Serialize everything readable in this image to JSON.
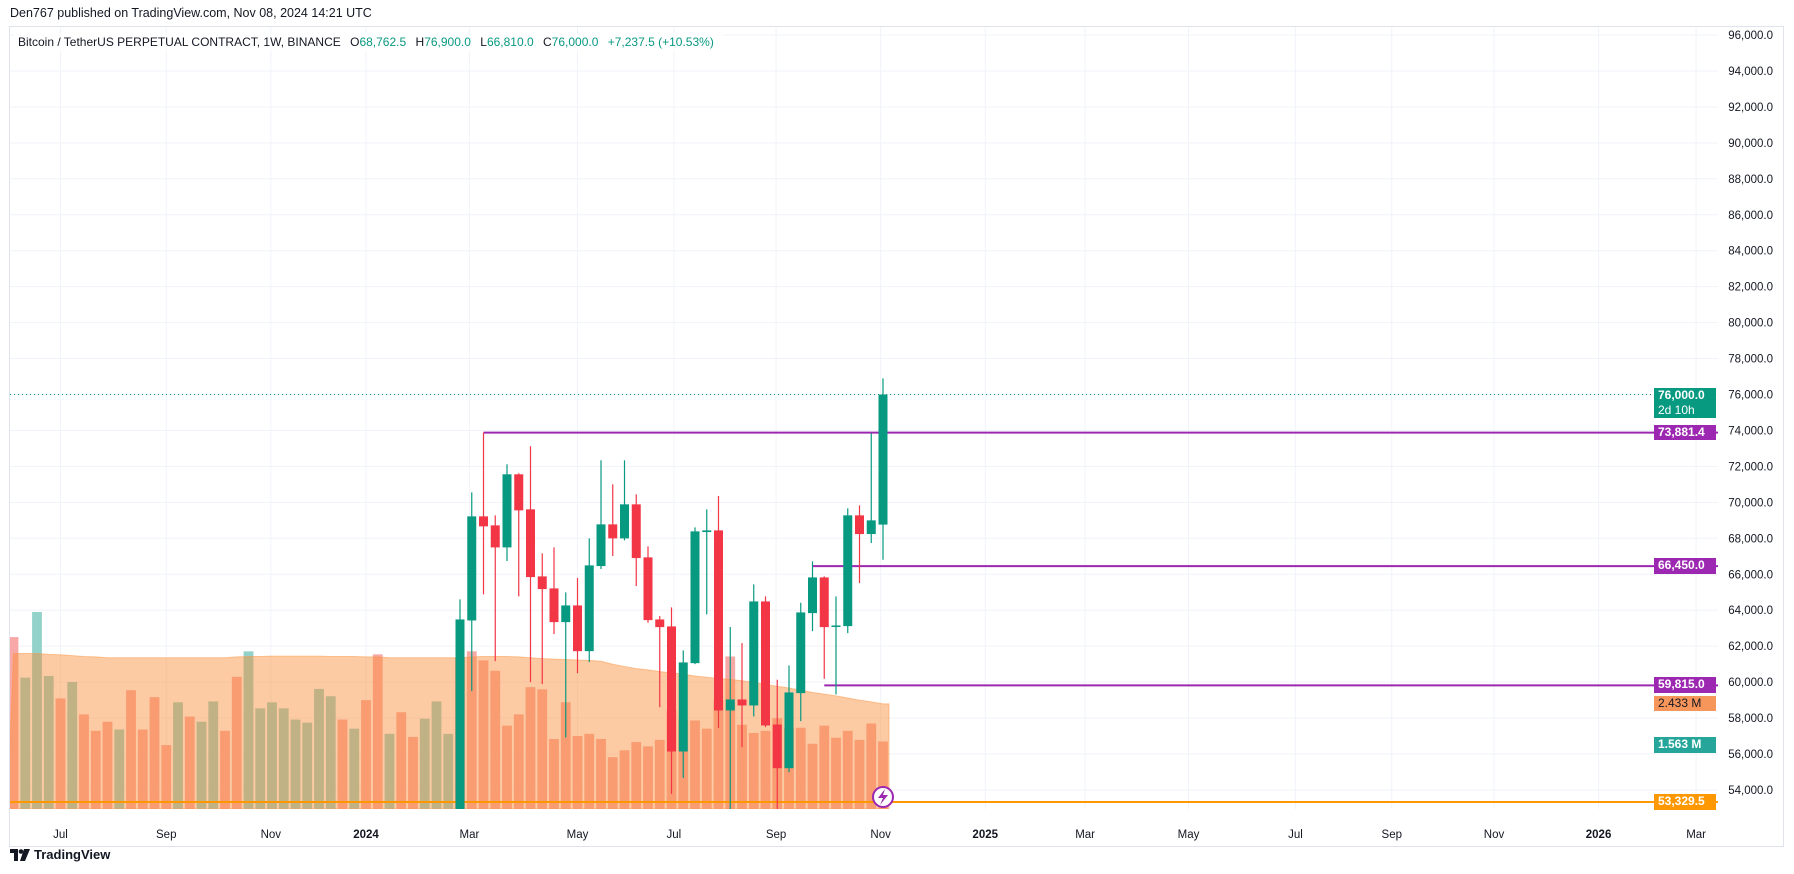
{
  "publisher_line": "Den767 published on TradingView.com, Nov 08, 2024 14:21 UTC",
  "legend": {
    "symbol": "Bitcoin / TetherUS PERPETUAL CONTRACT, 1W, BINANCE",
    "o_key": "O",
    "o_val": "68,762.5",
    "h_key": "H",
    "h_val": "76,900.0",
    "l_key": "L",
    "l_val": "66,810.0",
    "c_key": "C",
    "c_val": "76,000.0",
    "change": "+7,237.5 (+10.53%)"
  },
  "tags": {
    "last_price": "76,000.0",
    "countdown": "2d 10h",
    "level_1": "73,881.4",
    "level_2": "66,450.0",
    "level_3": "59,815.0",
    "volume_ma": "2.433 M",
    "volume_last": "1.563 M",
    "level_4": "53,329.5"
  },
  "branding": {
    "logo_text": "TradingView"
  },
  "colors": {
    "up": "#089981",
    "down": "#f23645",
    "level": "#9c27b0",
    "orange_level": "#ff9800",
    "vol_ma_tag": "#f7965a",
    "vol_tag": "#26a69a"
  },
  "chart_data": {
    "type": "candlestick",
    "title": "Bitcoin / TetherUS PERPETUAL CONTRACT, 1W, BINANCE",
    "timeframe": "1W",
    "ylim": [
      52940,
      96500
    ],
    "y_ticks": [
      "96,000.0",
      "94,000.0",
      "92,000.0",
      "90,000.0",
      "88,000.0",
      "86,000.0",
      "84,000.0",
      "82,000.0",
      "80,000.0",
      "78,000.0",
      "76,000.0",
      "74,000.0",
      "72,000.0",
      "70,000.0",
      "68,000.0",
      "66,000.0",
      "64,000.0",
      "62,000.0",
      "60,000.0",
      "58,000.0",
      "56,000.0",
      "54,000.0"
    ],
    "y_tick_values": [
      96000,
      94000,
      92000,
      90000,
      88000,
      86000,
      84000,
      82000,
      80000,
      78000,
      76000,
      74000,
      72000,
      70000,
      68000,
      66000,
      64000,
      62000,
      60000,
      58000,
      56000,
      54000
    ],
    "x_ticks": [
      {
        "label": "Jul",
        "week": 4.0,
        "bold": false
      },
      {
        "label": "Sep",
        "week": 13.0,
        "bold": false
      },
      {
        "label": "Nov",
        "week": 21.9,
        "bold": false
      },
      {
        "label": "2024",
        "week": 30.0,
        "bold": true
      },
      {
        "label": "Mar",
        "week": 38.8,
        "bold": false
      },
      {
        "label": "May",
        "week": 48.0,
        "bold": false
      },
      {
        "label": "Jul",
        "week": 56.2,
        "bold": false
      },
      {
        "label": "Sep",
        "week": 64.9,
        "bold": false
      },
      {
        "label": "Nov",
        "week": 73.8,
        "bold": false
      },
      {
        "label": "2025",
        "week": 82.7,
        "bold": true
      },
      {
        "label": "Mar",
        "week": 91.2,
        "bold": false
      },
      {
        "label": "May",
        "week": 100.0,
        "bold": false
      },
      {
        "label": "Jul",
        "week": 109.1,
        "bold": false
      },
      {
        "label": "Sep",
        "week": 117.3,
        "bold": false
      },
      {
        "label": "Nov",
        "week": 126.0,
        "bold": false
      },
      {
        "label": "2026",
        "week": 134.9,
        "bold": true
      },
      {
        "label": "Mar",
        "week": 143.2,
        "bold": false
      }
    ],
    "first_candle_week": 38,
    "candles_ohlc": [
      [
        51730,
        64600,
        50900,
        63486
      ],
      [
        63430,
        70557,
        59496,
        69220
      ],
      [
        69220,
        73881,
        64878,
        68664
      ],
      [
        68720,
        69276,
        61166,
        67494
      ],
      [
        67494,
        72116,
        66734,
        71560
      ],
      [
        71560,
        71615,
        64767,
        69555
      ],
      [
        69611,
        73118,
        59997,
        65843
      ],
      [
        65880,
        67160,
        59886,
        65175
      ],
      [
        65212,
        67494,
        62669,
        63337
      ],
      [
        63337,
        64989,
        56920,
        64265
      ],
      [
        64265,
        65787,
        60497,
        61722
      ],
      [
        61722,
        67996,
        61110,
        66493
      ],
      [
        66455,
        72339,
        66289,
        68775
      ],
      [
        68775,
        71003,
        67012,
        67996
      ],
      [
        67996,
        72339,
        67885,
        69889
      ],
      [
        69889,
        70446,
        65342,
        66901
      ],
      [
        66938,
        67550,
        63300,
        63449
      ],
      [
        63486,
        63672,
        58605,
        63060
      ],
      [
        63097,
        64154,
        53782,
        56139
      ],
      [
        56139,
        61763,
        54673,
        61095
      ],
      [
        61054,
        68608,
        60999,
        68385
      ],
      [
        68348,
        69611,
        63765,
        68441
      ],
      [
        68441,
        70353,
        57438,
        58422
      ],
      [
        58422,
        63062,
        49000,
        59034
      ],
      [
        59034,
        62171,
        56380,
        58700
      ],
      [
        58700,
        65435,
        58088,
        64488
      ],
      [
        64488,
        64767,
        57494,
        57587
      ],
      [
        57642,
        60129,
        52928,
        55211
      ],
      [
        55211,
        60925,
        54988,
        59424
      ],
      [
        59387,
        64414,
        57828,
        63876
      ],
      [
        63838,
        66715,
        62836,
        65824
      ],
      [
        65824,
        65880,
        60182,
        63059
      ],
      [
        63100,
        64767,
        59313,
        63150
      ],
      [
        63115,
        69666,
        62725,
        69277
      ],
      [
        69277,
        69833,
        65509,
        68237
      ],
      [
        68237,
        73842,
        67736,
        68998
      ],
      [
        68762.5,
        76900,
        66810,
        76000
      ]
    ],
    "volume_millions": [
      3.98,
      3.04,
      4.56,
      3.08,
      2.56,
      2.94,
      2.19,
      1.81,
      2.02,
      1.84,
      2.75,
      1.84,
      2.59,
      1.48,
      2.47,
      2.14,
      2.02,
      2.49,
      1.81,
      3.06,
      3.65,
      2.33,
      2.47,
      2.33,
      2.07,
      2.0,
      2.78,
      2.61,
      2.07,
      1.86,
      2.52,
      3.58,
      1.74,
      2.24,
      1.67,
      2.09,
      2.49,
      1.74,
      3.5,
      3.65,
      3.44,
      3.2,
      1.93,
      2.19,
      2.82,
      2.77,
      1.62,
      2.47,
      1.69,
      1.74,
      1.62,
      1.2,
      1.36,
      1.55,
      1.45,
      1.6,
      2.28,
      2.07,
      2.05,
      1.86,
      2.52,
      3.53,
      1.95,
      1.76,
      1.81,
      2.1,
      1.88,
      1.88,
      1.51,
      1.93,
      1.65,
      1.81,
      1.6,
      1.98,
      1.563
    ],
    "volume_direction": "duuududddudddduduudduuuuuuuududdudduuud",
    "volume_ma_millions": [
      3.6,
      3.6,
      3.6,
      3.58,
      3.57,
      3.55,
      3.53,
      3.52,
      3.5,
      3.5,
      3.5,
      3.5,
      3.5,
      3.5,
      3.5,
      3.5,
      3.5,
      3.5,
      3.5,
      3.52,
      3.53,
      3.53,
      3.54,
      3.54,
      3.54,
      3.54,
      3.54,
      3.53,
      3.53,
      3.53,
      3.52,
      3.52,
      3.5,
      3.5,
      3.5,
      3.5,
      3.5,
      3.5,
      3.5,
      3.52,
      3.53,
      3.53,
      3.53,
      3.52,
      3.5,
      3.48,
      3.47,
      3.46,
      3.45,
      3.44,
      3.42,
      3.35,
      3.3,
      3.25,
      3.22,
      3.18,
      3.15,
      3.12,
      3.08,
      3.05,
      3.02,
      3.0,
      2.97,
      2.93,
      2.88,
      2.84,
      2.8,
      2.75,
      2.7,
      2.66,
      2.62,
      2.57,
      2.52,
      2.48,
      2.433
    ],
    "levels": [
      {
        "price": 73881.4,
        "from_week": 40,
        "color": "#9c27b0"
      },
      {
        "price": 66450.0,
        "from_week": 68,
        "color": "#9c27b0"
      },
      {
        "price": 59815.0,
        "from_week": 69,
        "color": "#9c27b0"
      },
      {
        "price": 53329.5,
        "from_week": -1.5,
        "color": "#ff9800"
      }
    ],
    "last_price": 76000,
    "last_volume_millions": 1.563,
    "volume_ma_last_millions": 2.433
  }
}
